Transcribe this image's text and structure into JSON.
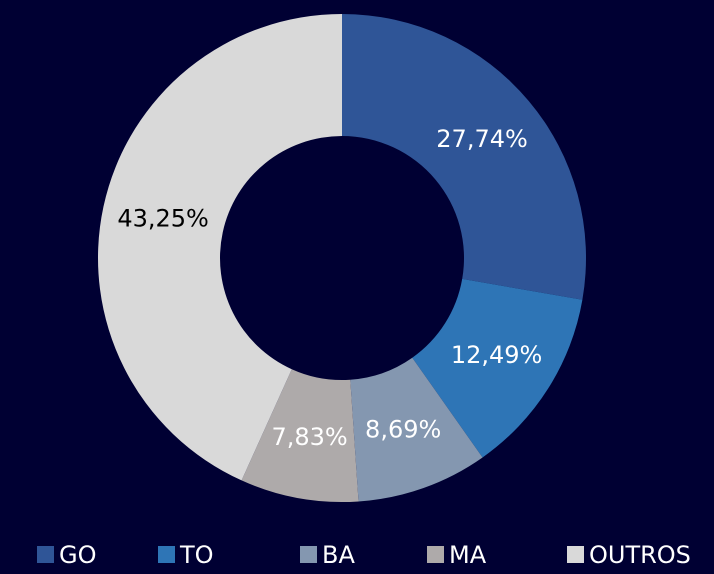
{
  "chart_data": {
    "type": "pie",
    "donut": true,
    "categories": [
      "GO",
      "TO",
      "BA",
      "MA",
      "OUTROS"
    ],
    "values": [
      27.74,
      12.49,
      8.69,
      7.83,
      43.25
    ],
    "value_labels": [
      "27,74%",
      "12,49%",
      "8,69%",
      "7,83%",
      "43,25%"
    ],
    "colors": [
      "#2f5597",
      "#2e75b6",
      "#8497b0",
      "#aeaaaa",
      "#d9d9d9"
    ],
    "legend": "bottom"
  }
}
